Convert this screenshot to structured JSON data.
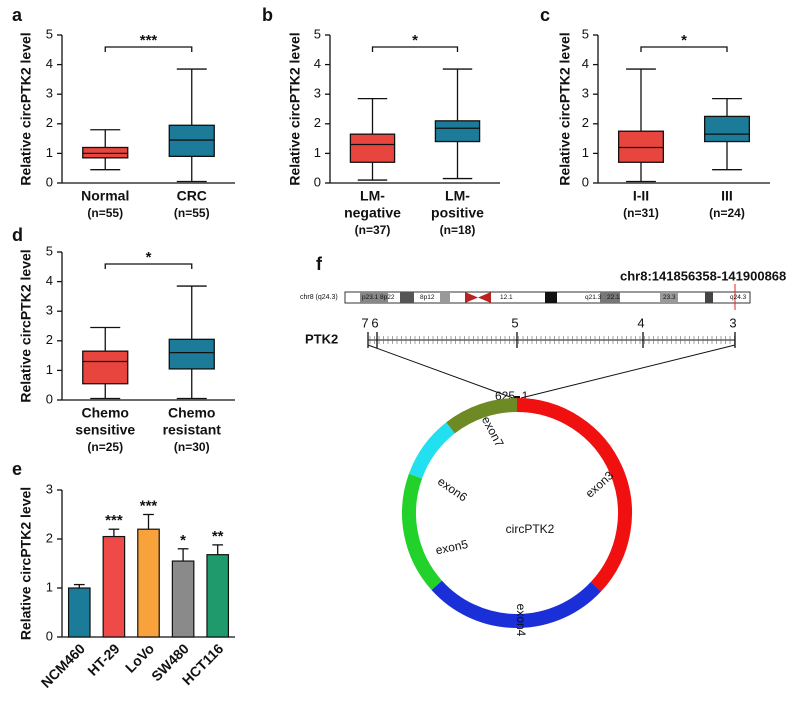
{
  "chart_data": [
    {
      "type": "box",
      "label": "a",
      "ylabel": "Relative circPTK2 level",
      "categories": [
        [
          "Normal"
        ],
        [
          "CRC"
        ]
      ],
      "n_labels": [
        "(n=55)",
        "(n=55)"
      ],
      "colors": [
        "#e8453f",
        "#1b7b98"
      ],
      "boxes": [
        {
          "min": 0.45,
          "q1": 0.85,
          "median": 1.0,
          "q3": 1.2,
          "max": 1.8
        },
        {
          "min": 0.05,
          "q1": 0.9,
          "median": 1.45,
          "q3": 1.95,
          "max": 3.85
        }
      ],
      "significance": "***",
      "ylim": [
        0,
        5
      ],
      "yticks": [
        0,
        1,
        2,
        3,
        4,
        5
      ]
    },
    {
      "type": "box",
      "label": "b",
      "ylabel": "Relative circPTK2 level",
      "categories": [
        [
          "LM-",
          "negative"
        ],
        [
          "LM-",
          "positive"
        ]
      ],
      "n_labels": [
        "(n=37)",
        "(n=18)"
      ],
      "colors": [
        "#e8453f",
        "#1b7b98"
      ],
      "boxes": [
        {
          "min": 0.1,
          "q1": 0.7,
          "median": 1.3,
          "q3": 1.65,
          "max": 2.85
        },
        {
          "min": 0.15,
          "q1": 1.4,
          "median": 1.85,
          "q3": 2.1,
          "max": 3.85
        }
      ],
      "significance": "*",
      "ylim": [
        0,
        5
      ],
      "yticks": [
        0,
        1,
        2,
        3,
        4,
        5
      ]
    },
    {
      "type": "box",
      "label": "c",
      "ylabel": "Relative circPTK2 level",
      "categories": [
        [
          "I-II"
        ],
        [
          "III"
        ]
      ],
      "n_labels": [
        "(n=31)",
        "(n=24)"
      ],
      "colors": [
        "#e8453f",
        "#1b7b98"
      ],
      "boxes": [
        {
          "min": 0.05,
          "q1": 0.7,
          "median": 1.2,
          "q3": 1.75,
          "max": 3.85
        },
        {
          "min": 0.45,
          "q1": 1.4,
          "median": 1.65,
          "q3": 2.25,
          "max": 2.85
        }
      ],
      "significance": "*",
      "ylim": [
        0,
        5
      ],
      "yticks": [
        0,
        1,
        2,
        3,
        4,
        5
      ]
    },
    {
      "type": "box",
      "label": "d",
      "ylabel": "Relative circPTK2 level",
      "categories": [
        [
          "Chemo",
          "sensitive"
        ],
        [
          "Chemo",
          "resistant"
        ]
      ],
      "n_labels": [
        "(n=25)",
        "(n=30)"
      ],
      "colors": [
        "#e8453f",
        "#1b7b98"
      ],
      "boxes": [
        {
          "min": 0.05,
          "q1": 0.55,
          "median": 1.3,
          "q3": 1.65,
          "max": 2.45
        },
        {
          "min": 0.05,
          "q1": 1.05,
          "median": 1.6,
          "q3": 2.05,
          "max": 3.85
        }
      ],
      "significance": "*",
      "ylim": [
        0,
        5
      ],
      "yticks": [
        0,
        1,
        2,
        3,
        4,
        5
      ]
    },
    {
      "type": "bar",
      "label": "e",
      "ylabel": "Relative circPTK2 level",
      "categories": [
        "NCM460",
        "HT-29",
        "LoVo",
        "SW480",
        "HCT116"
      ],
      "values": [
        1.0,
        2.05,
        2.2,
        1.55,
        1.68
      ],
      "errors": [
        0.07,
        0.15,
        0.3,
        0.25,
        0.2
      ],
      "significance": [
        null,
        "***",
        "***",
        "*",
        "**"
      ],
      "colors": [
        "#1b7b98",
        "#ef4a48",
        "#f8a23c",
        "#8a8a8a",
        "#1f9a6c"
      ],
      "ylim": [
        0,
        3
      ],
      "yticks": [
        0,
        1,
        2,
        3
      ]
    }
  ],
  "diagram": {
    "label": "f",
    "coordinates": "chr8:141856358-141900868",
    "chromosome": "chr8 (q24.3)",
    "bands": [
      "p23.1",
      "8p22",
      "8p12",
      "12.1",
      "q21.3",
      "22.1",
      "23.3",
      "q24.3"
    ],
    "gene": "PTK2",
    "exon_ticks": [
      "7",
      "6",
      "5",
      "4",
      "3"
    ],
    "junction": [
      "625",
      "1"
    ],
    "center_label": "circPTK2",
    "exons": [
      "exon3",
      "exon4",
      "exon5",
      "exon6",
      "exon7"
    ]
  }
}
